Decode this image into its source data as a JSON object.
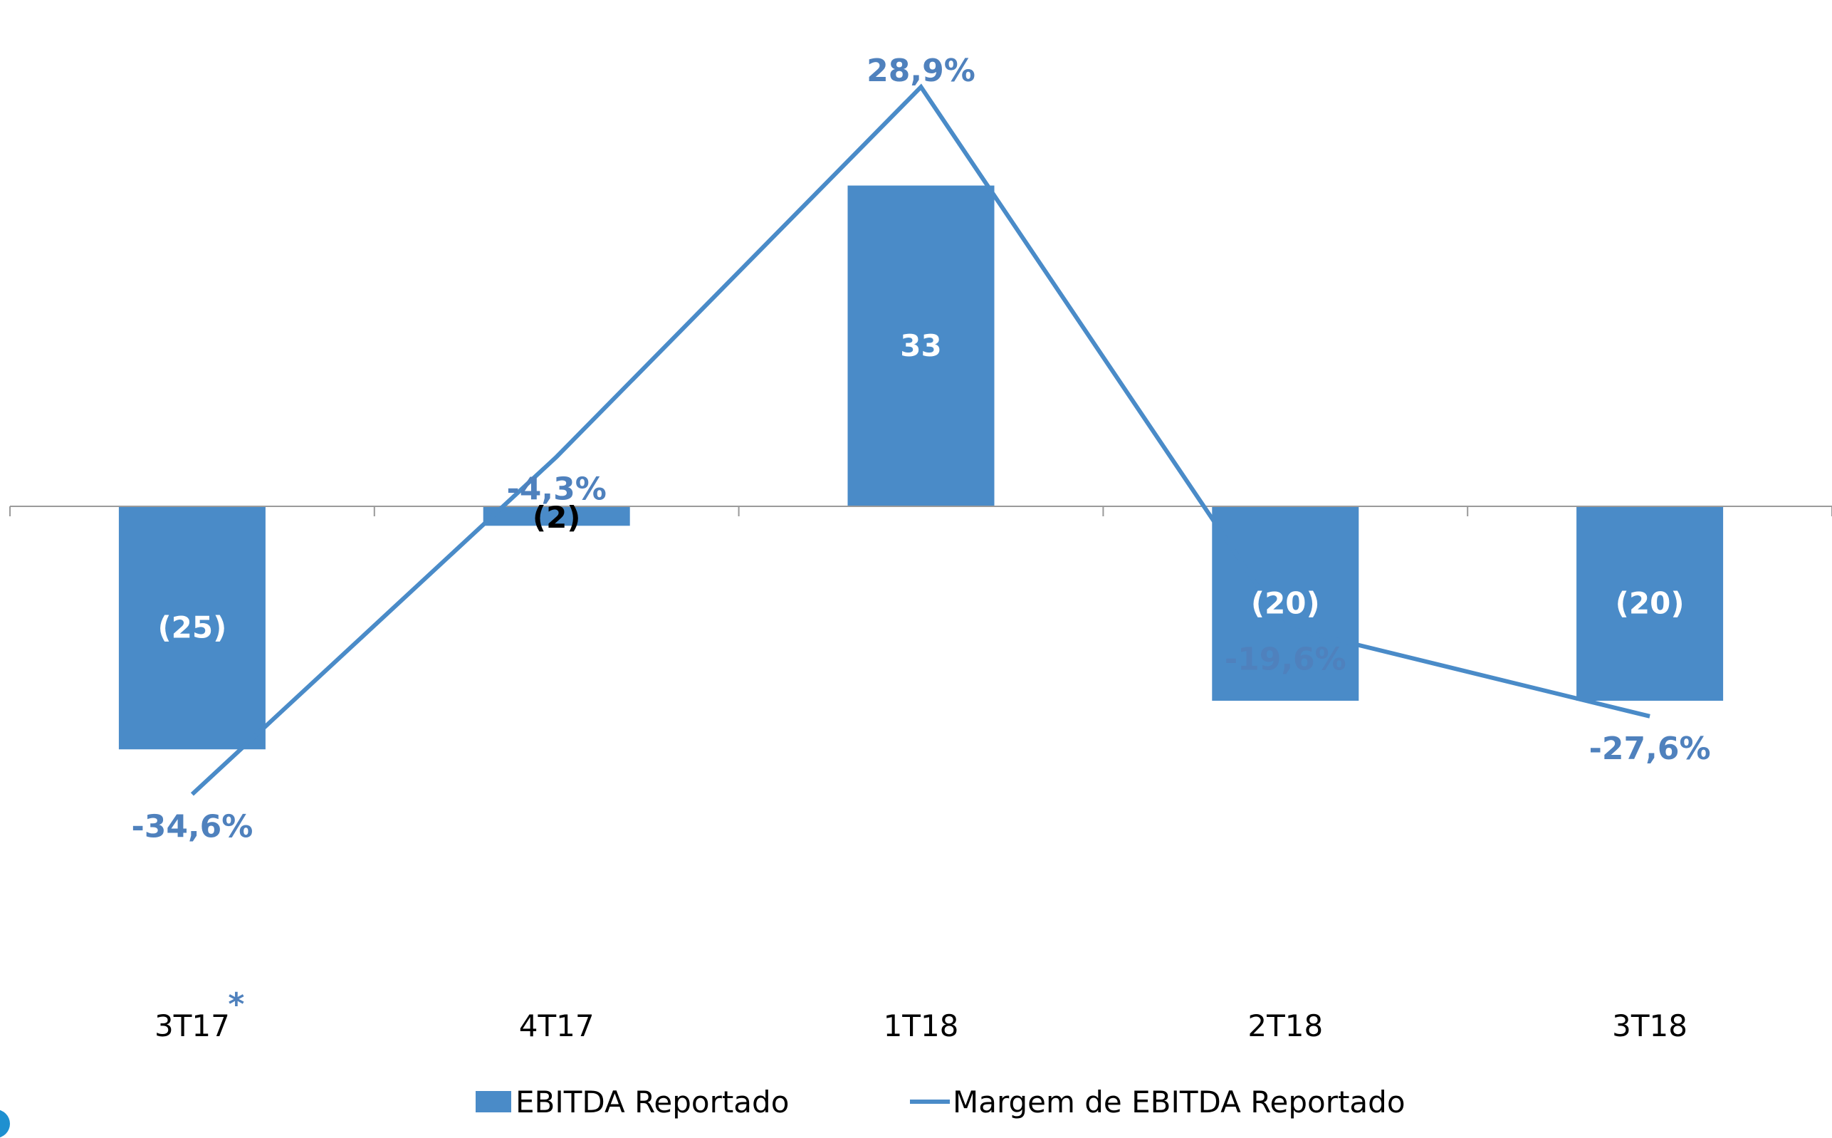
{
  "chart_data": {
    "type": "bar",
    "categories": [
      "3T17",
      "4T17",
      "1T18",
      "2T18",
      "3T18"
    ],
    "category_note": "*",
    "series": [
      {
        "name": "EBITDA Reportado",
        "type": "bar",
        "values": [
          -25,
          -2,
          33,
          -20,
          -20
        ],
        "labels": [
          "(25)",
          "(2)",
          "33",
          "(20)",
          "(20)"
        ]
      },
      {
        "name": "Margem de EBITDA Reportado",
        "type": "line",
        "values": [
          -34.6,
          -4.3,
          28.9,
          -19.6,
          -27.6
        ],
        "labels": [
          "-34,6%",
          "-4,3%",
          "28,9%",
          "-19,6%",
          "-27,6%"
        ]
      }
    ],
    "bar_axis_ylim": [
      -47,
      52
    ],
    "line_axis_ylim": [
      -45,
      33
    ],
    "legend_position": "bottom",
    "grid": false,
    "colors": {
      "bar": "#4a8bc8",
      "line": "#4a8bc8",
      "line_label": "#4f81bd",
      "bar_label_inside": "#ffffff",
      "bar_label_outside": "#000000",
      "axis": "#9a9a9a"
    }
  }
}
